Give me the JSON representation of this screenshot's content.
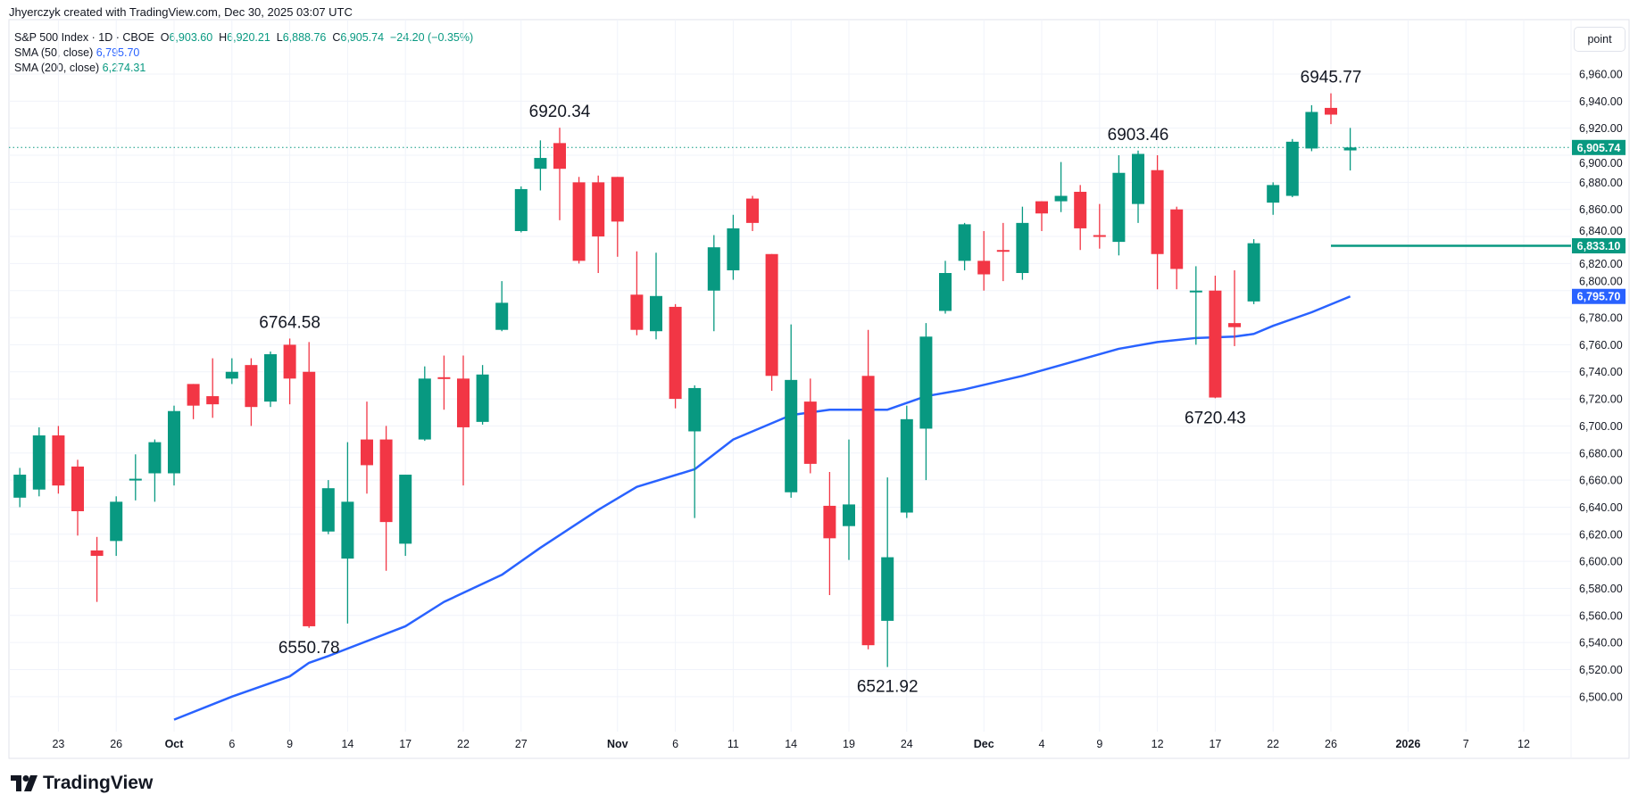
{
  "credit": "Jhyerczyk created with TradingView.com, Dec 30, 2025 03:07 UTC",
  "legend": {
    "symbol": "S&P 500 Index · 1D · CBOE",
    "o_label": "O",
    "o": "6,903.60",
    "h_label": "H",
    "h": "6,920.21",
    "l_label": "L",
    "l": "6,888.76",
    "c_label": "C",
    "c": "6,905.74",
    "change": "−24.20 (−0.35%)",
    "sma50_label": "SMA (50, close)",
    "sma50_value": "6,795.70",
    "sma200_label": "SMA (200, close)",
    "sma200_value": "6,274.31"
  },
  "scale_button": "point",
  "brand": "TradingView",
  "colors": {
    "up": "#089981",
    "down": "#f23645",
    "sma50": "#2962ff",
    "grid": "#f0f3fa"
  },
  "chart_data": {
    "type": "candlestick",
    "ylim": [
      6480,
      6975
    ],
    "y_ticks": [
      "6,500.00",
      "6,520.00",
      "6,540.00",
      "6,560.00",
      "6,580.00",
      "6,600.00",
      "6,620.00",
      "6,640.00",
      "6,660.00",
      "6,680.00",
      "6,700.00",
      "6,720.00",
      "6,740.00",
      "6,760.00",
      "6,780.00",
      "6,800.00",
      "6,820.00",
      "6,840.00",
      "6,860.00",
      "6,880.00",
      "6,900.00",
      "6,920.00",
      "6,940.00",
      "6,960.00"
    ],
    "x_ticks": [
      {
        "label": "23",
        "date": "2025-09-23"
      },
      {
        "label": "26",
        "date": "2025-09-26"
      },
      {
        "label": "Oct",
        "date": "2025-10-01"
      },
      {
        "label": "6",
        "date": "2025-10-06"
      },
      {
        "label": "9",
        "date": "2025-10-09"
      },
      {
        "label": "14",
        "date": "2025-10-14"
      },
      {
        "label": "17",
        "date": "2025-10-17"
      },
      {
        "label": "22",
        "date": "2025-10-22"
      },
      {
        "label": "27",
        "date": "2025-10-27"
      },
      {
        "label": "Nov",
        "date": "2025-11-03"
      },
      {
        "label": "6",
        "date": "2025-11-06"
      },
      {
        "label": "11",
        "date": "2025-11-11"
      },
      {
        "label": "14",
        "date": "2025-11-14"
      },
      {
        "label": "19",
        "date": "2025-11-19"
      },
      {
        "label": "24",
        "date": "2025-11-24"
      },
      {
        "label": "Dec",
        "date": "2025-12-01"
      },
      {
        "label": "4",
        "date": "2025-12-04"
      },
      {
        "label": "9",
        "date": "2025-12-09"
      },
      {
        "label": "12",
        "date": "2025-12-12"
      },
      {
        "label": "17",
        "date": "2025-12-17"
      },
      {
        "label": "22",
        "date": "2025-12-22"
      },
      {
        "label": "26",
        "date": "2025-12-26"
      },
      {
        "label": "2026",
        "date": "2026-01-02"
      },
      {
        "label": "7",
        "date": "2026-01-07"
      },
      {
        "label": "12",
        "date": "2026-01-12"
      }
    ],
    "candles": [
      [
        "2025-09-19",
        6647,
        6669,
        6640,
        6664
      ],
      [
        "2025-09-22",
        6653,
        6699,
        6648,
        6693
      ],
      [
        "2025-09-23",
        6693,
        6700,
        6650,
        6656
      ],
      [
        "2025-09-24",
        6670,
        6675,
        6619,
        6637
      ],
      [
        "2025-09-25",
        6608,
        6618,
        6570,
        6604
      ],
      [
        "2025-09-26",
        6615,
        6648,
        6604,
        6644
      ],
      [
        "2025-09-29",
        6661,
        6679,
        6645,
        6661
      ],
      [
        "2025-09-30",
        6665,
        6690,
        6644,
        6688
      ],
      [
        "2025-10-01",
        6665,
        6715,
        6656,
        6711
      ],
      [
        "2025-10-02",
        6731,
        6731,
        6705,
        6715
      ],
      [
        "2025-10-03",
        6722,
        6750,
        6706,
        6716
      ],
      [
        "2025-10-06",
        6735,
        6750,
        6731,
        6740
      ],
      [
        "2025-10-07",
        6745,
        6750,
        6700,
        6714
      ],
      [
        "2025-10-08",
        6718,
        6755,
        6714,
        6753
      ],
      [
        "2025-10-09",
        6760,
        6764.58,
        6716,
        6735
      ],
      [
        "2025-10-10",
        6740,
        6762,
        6550.78,
        6552
      ],
      [
        "2025-10-13",
        6622,
        6660,
        6620,
        6654
      ],
      [
        "2025-10-14",
        6602,
        6688,
        6554,
        6644
      ],
      [
        "2025-10-15",
        6690,
        6718,
        6650,
        6671
      ],
      [
        "2025-10-16",
        6690,
        6700,
        6593,
        6629
      ],
      [
        "2025-10-17",
        6613,
        6664,
        6604,
        6664
      ],
      [
        "2025-10-20",
        6690,
        6744,
        6689,
        6735
      ],
      [
        "2025-10-21",
        6736,
        6752,
        6712,
        6735
      ],
      [
        "2025-10-22",
        6735,
        6752,
        6656,
        6699
      ],
      [
        "2025-10-23",
        6703,
        6745,
        6701,
        6738
      ],
      [
        "2025-10-24",
        6771,
        6807,
        6770,
        6791
      ],
      [
        "2025-10-27",
        6844,
        6877,
        6843,
        6875
      ],
      [
        "2025-10-28",
        6890,
        6911,
        6874,
        6898
      ],
      [
        "2025-10-29",
        6909,
        6920.34,
        6852,
        6890
      ],
      [
        "2025-10-30",
        6880,
        6884,
        6820,
        6822
      ],
      [
        "2025-10-31",
        6880,
        6885,
        6813,
        6840
      ],
      [
        "2025-11-03",
        6884,
        6884,
        6825,
        6851
      ],
      [
        "2025-11-04",
        6797,
        6829,
        6767,
        6771
      ],
      [
        "2025-11-05",
        6770,
        6828,
        6764,
        6796
      ],
      [
        "2025-11-06",
        6788,
        6790,
        6713,
        6720
      ],
      [
        "2025-11-07",
        6696,
        6730,
        6632,
        6728
      ],
      [
        "2025-11-10",
        6800,
        6841,
        6770,
        6832
      ],
      [
        "2025-11-11",
        6815,
        6856,
        6808,
        6846
      ],
      [
        "2025-11-12",
        6868,
        6870,
        6844,
        6850
      ],
      [
        "2025-11-13",
        6827,
        6827,
        6726,
        6737
      ],
      [
        "2025-11-14",
        6651,
        6775,
        6647,
        6734
      ],
      [
        "2025-11-17",
        6718,
        6735,
        6665,
        6672
      ],
      [
        "2025-11-18",
        6641,
        6666,
        6575,
        6617
      ],
      [
        "2025-11-19",
        6626,
        6690,
        6601,
        6642
      ],
      [
        "2025-11-20",
        6737,
        6771,
        6535,
        6538
      ],
      [
        "2025-11-21",
        6556,
        6662,
        6521.92,
        6603
      ],
      [
        "2025-11-24",
        6636,
        6715,
        6632,
        6705
      ],
      [
        "2025-11-25",
        6698,
        6776,
        6660,
        6766
      ],
      [
        "2025-11-26",
        6785,
        6822,
        6783,
        6813
      ],
      [
        "2025-11-28",
        6822,
        6850,
        6815,
        6849
      ],
      [
        "2025-12-01",
        6822,
        6844,
        6800,
        6812
      ],
      [
        "2025-12-02",
        6830,
        6850,
        6807,
        6829
      ],
      [
        "2025-12-03",
        6813,
        6862,
        6808,
        6850
      ],
      [
        "2025-12-04",
        6866,
        6866,
        6844,
        6857
      ],
      [
        "2025-12-05",
        6866,
        6895,
        6858,
        6870
      ],
      [
        "2025-12-08",
        6873,
        6878,
        6830,
        6846
      ],
      [
        "2025-12-09",
        6841,
        6864,
        6831,
        6840
      ],
      [
        "2025-12-10",
        6836,
        6900,
        6826,
        6887
      ],
      [
        "2025-12-11",
        6864,
        6903.46,
        6850,
        6901
      ],
      [
        "2025-12-12",
        6889,
        6900,
        6801,
        6827
      ],
      [
        "2025-12-15",
        6860,
        6862,
        6801,
        6816
      ],
      [
        "2025-12-16",
        6799,
        6818,
        6760,
        6800
      ],
      [
        "2025-12-17",
        6800,
        6811,
        6720.43,
        6721
      ],
      [
        "2025-12-18",
        6776,
        6815,
        6759,
        6773
      ],
      [
        "2025-12-19",
        6792,
        6838,
        6790,
        6835
      ],
      [
        "2025-12-22",
        6865,
        6880,
        6856,
        6878
      ],
      [
        "2025-12-23",
        6870,
        6912,
        6869,
        6910
      ],
      [
        "2025-12-24",
        6905,
        6937,
        6903,
        6932
      ],
      [
        "2025-12-26",
        6935,
        6945.77,
        6923,
        6930
      ],
      [
        "2025-12-29",
        6903.6,
        6920.21,
        6888.76,
        6905.74
      ]
    ],
    "sma50": [
      [
        "2025-10-01",
        6483
      ],
      [
        "2025-10-06",
        6500
      ],
      [
        "2025-10-09",
        6515
      ],
      [
        "2025-10-10",
        6525
      ],
      [
        "2025-10-13",
        6530
      ],
      [
        "2025-10-17",
        6552
      ],
      [
        "2025-10-21",
        6570
      ],
      [
        "2025-10-24",
        6590
      ],
      [
        "2025-10-28",
        6610
      ],
      [
        "2025-10-31",
        6638
      ],
      [
        "2025-11-04",
        6655
      ],
      [
        "2025-11-07",
        6668
      ],
      [
        "2025-11-11",
        6690
      ],
      [
        "2025-11-14",
        6708
      ],
      [
        "2025-11-18",
        6712
      ],
      [
        "2025-11-21",
        6712
      ],
      [
        "2025-11-25",
        6722
      ],
      [
        "2025-11-28",
        6727
      ],
      [
        "2025-12-03",
        6737
      ],
      [
        "2025-12-05",
        6745
      ],
      [
        "2025-12-10",
        6757
      ],
      [
        "2025-12-12",
        6762
      ],
      [
        "2025-12-16",
        6765
      ],
      [
        "2025-12-18",
        6766
      ],
      [
        "2025-12-19",
        6768
      ],
      [
        "2025-12-22",
        6774
      ],
      [
        "2025-12-24",
        6784
      ],
      [
        "2025-12-29",
        6795.7
      ]
    ],
    "annotations": [
      {
        "text": "6764.58",
        "date": "2025-10-09",
        "price": 6764.58,
        "pos": "above"
      },
      {
        "text": "6550.78",
        "date": "2025-10-10",
        "price": 6550.78,
        "pos": "below"
      },
      {
        "text": "6920.34",
        "date": "2025-10-29",
        "price": 6920.34,
        "pos": "above"
      },
      {
        "text": "6521.92",
        "date": "2025-11-21",
        "price": 6521.92,
        "pos": "below"
      },
      {
        "text": "6903.46",
        "date": "2025-12-11",
        "price": 6903.46,
        "pos": "above"
      },
      {
        "text": "6720.43",
        "date": "2025-12-17",
        "price": 6720.43,
        "pos": "below"
      },
      {
        "text": "6945.77",
        "date": "2025-12-26",
        "price": 6945.77,
        "pos": "above"
      }
    ],
    "horizontal_line": {
      "price": 6833.1,
      "label": "6,833.10",
      "from_date": "2025-12-26",
      "color": "#089981"
    },
    "last_price": {
      "price": 6905.74,
      "label": "6,905.74",
      "color": "#089981"
    },
    "sma50_badge": {
      "price": 6795.7,
      "label": "6,795.70",
      "color": "#2962ff"
    }
  }
}
